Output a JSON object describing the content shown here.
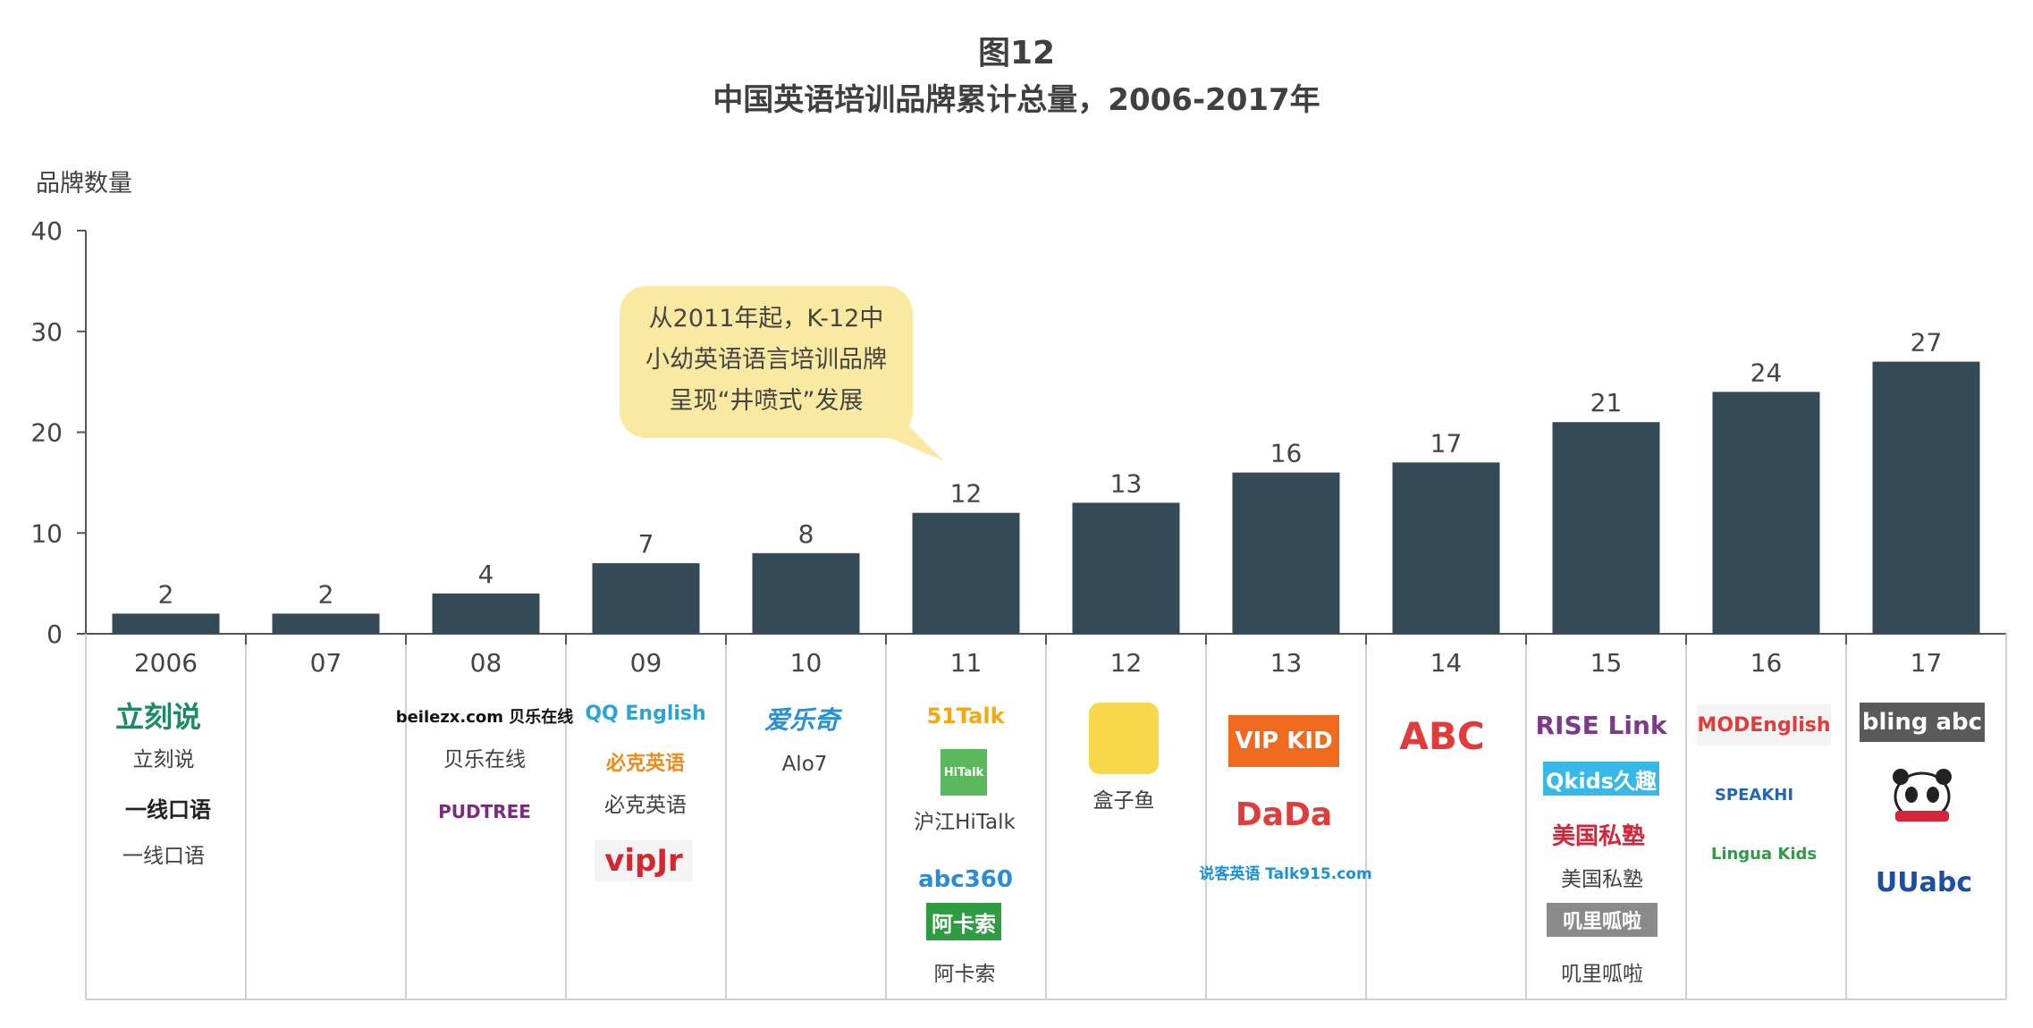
{
  "figure": {
    "label": "图12",
    "title": "中国英语培训品牌累计总量，2006-2017年",
    "y_axis_title": "品牌数量"
  },
  "callout": {
    "lines": [
      "从2011年起，K-12中",
      "小幼英语语言培训品牌",
      "呈现“井喷式”发展"
    ],
    "fill": "#faeaa1"
  },
  "colors": {
    "bar": "#354a57",
    "axis": "#555555",
    "grid": "#d0d0d0"
  },
  "chart_data": {
    "type": "bar",
    "categories": [
      "2006",
      "07",
      "08",
      "09",
      "10",
      "11",
      "12",
      "13",
      "14",
      "15",
      "16",
      "17"
    ],
    "values": [
      2,
      2,
      4,
      7,
      8,
      12,
      13,
      16,
      17,
      21,
      24,
      27
    ],
    "ylabel": "品牌数量",
    "ylim": [
      0,
      40
    ],
    "yticks": [
      0,
      10,
      20,
      30,
      40
    ],
    "title": "中国英语培训品牌累计总量，2006-2017年",
    "grid": false
  },
  "brands": {
    "立刻说": {
      "mark": "立刻说",
      "color": "#1b8a63"
    },
    "一线口语": {
      "mark": "一线口语",
      "color": "#222222"
    },
    "贝乐在线": {
      "mark": "beilezx.com 贝乐在线",
      "color": "#111111"
    },
    "布丁树": {
      "mark": "PUDTREE",
      "color": "#7a2b7f"
    },
    "QQEnglish": {
      "mark": "QQ English",
      "color": "#2aa3d6"
    },
    "必克英语": {
      "mark": "必克英语",
      "color": "#f08a1c"
    },
    "必克英语_caption": {
      "mark": "必克英语",
      "color": "#404040"
    },
    "vipJr": {
      "mark": "vipJr",
      "color": "#d7262f"
    },
    "Alo7": {
      "mark": "爱乐奇",
      "color": "#2a8fd8"
    },
    "51Talk": {
      "mark": "51Talk",
      "color": "#f3a712"
    },
    "HiTalk": {
      "mark": "HiTalk",
      "color": "#ffffff"
    },
    "abc360": {
      "mark": "abc360",
      "color": "#2b8cd6"
    },
    "阿卡索": {
      "mark": "阿卡索",
      "color": "#ffffff"
    },
    "VIPKID": {
      "mark": "VIP KID",
      "color": "#ffffff"
    },
    "DaDa": {
      "mark": "DaDa",
      "color": "#e23b3b"
    },
    "说客英语": {
      "mark": "说客英语 Talk915.com",
      "color": "#1d8fd6"
    },
    "ABC在线英语": {
      "mark": "ABC",
      "color": "#e23b3b"
    },
    "RISELink": {
      "mark": "RISE Link",
      "color": "#7c3a8c"
    },
    "Qkids": {
      "mark": "Qkids久趣",
      "color": "#ffffff"
    },
    "美国私塾": {
      "mark": "美国私塾",
      "color": "#d6243a"
    },
    "叽里呱啦": {
      "mark": "叽里呱啦",
      "color": "#ffffff"
    },
    "MODEnglish": {
      "mark": "MODEnglish",
      "color": "#e23b3b"
    },
    "SPEAKHI": {
      "mark": "SPEAKHI",
      "color": "#2467b0"
    },
    "LinguaKids": {
      "mark": "Lingua Kids",
      "color": "#2f9b43"
    },
    "bling": {
      "mark": "bling abc",
      "color": "#ffffff"
    },
    "panda": {
      "mark": "panda",
      "color": "#d6243a"
    },
    "UUabc": {
      "mark": "UUabc",
      "color": "#1d4ea3"
    }
  },
  "captions": {
    "c2006a": "立刻说",
    "c2006b": "一线口语",
    "c08": "贝乐在线",
    "c09": "必克英语",
    "c10": "Alo7",
    "c11a": "沪江HiTalk",
    "c11b": "阿卡索",
    "c12": "盒子鱼",
    "c15a": "美国私塾",
    "c15b": "叽里呱啦"
  }
}
